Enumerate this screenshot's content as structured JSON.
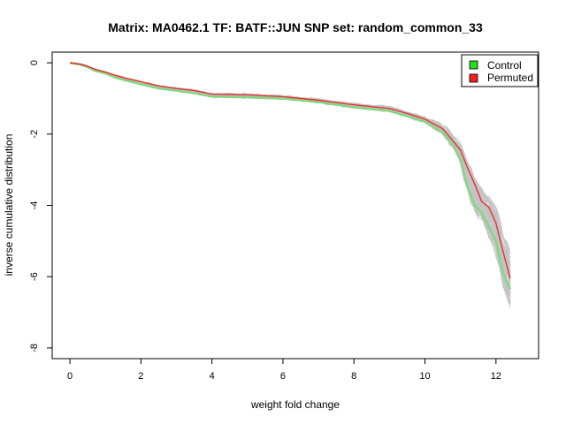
{
  "chart_data": {
    "type": "line",
    "title": "Matrix: MA0462.1 TF: BATF::JUN SNP set: random_common_33",
    "xlabel": "weight fold change",
    "ylabel": "inverse cumulative distribution",
    "xlim": [
      -0.5,
      13.2
    ],
    "ylim": [
      -8.3,
      0.3
    ],
    "x_ticks": [
      0,
      2,
      4,
      6,
      8,
      10,
      12
    ],
    "y_ticks": [
      0,
      -2,
      -4,
      -6,
      -8
    ],
    "legend": {
      "position": "top-right",
      "entries": [
        {
          "label": "Control",
          "color": "#22dd22"
        },
        {
          "label": "Permuted",
          "color": "#ee2222"
        }
      ]
    },
    "series": [
      {
        "name": "Control",
        "color": "#7fd97f",
        "x": [
          0.0,
          0.3,
          0.5,
          0.7,
          1.0,
          1.3,
          1.6,
          2.0,
          2.5,
          3.0,
          3.5,
          4.0,
          5.0,
          6.0,
          7.0,
          8.0,
          9.0,
          9.5,
          10.0,
          10.5,
          10.8,
          11.0,
          11.2,
          11.4,
          11.6,
          11.8,
          12.0,
          12.2,
          12.4
        ],
        "y": [
          0.0,
          -0.05,
          -0.12,
          -0.22,
          -0.3,
          -0.42,
          -0.5,
          -0.6,
          -0.72,
          -0.78,
          -0.85,
          -0.95,
          -0.97,
          -1.0,
          -1.1,
          -1.25,
          -1.35,
          -1.5,
          -1.65,
          -1.95,
          -2.3,
          -2.7,
          -3.5,
          -4.0,
          -4.2,
          -4.6,
          -5.0,
          -5.9,
          -6.35
        ]
      },
      {
        "name": "Permuted",
        "color": "#e83030",
        "x": [
          0.0,
          0.3,
          0.5,
          0.7,
          1.0,
          1.3,
          1.6,
          2.0,
          2.5,
          3.0,
          3.5,
          4.0,
          5.0,
          6.0,
          7.0,
          8.0,
          9.0,
          9.5,
          10.0,
          10.5,
          10.8,
          11.0,
          11.2,
          11.4,
          11.6,
          11.8,
          12.0,
          12.2,
          12.4
        ],
        "y": [
          0.0,
          -0.04,
          -0.1,
          -0.18,
          -0.26,
          -0.36,
          -0.44,
          -0.53,
          -0.65,
          -0.72,
          -0.78,
          -0.88,
          -0.9,
          -0.95,
          -1.05,
          -1.18,
          -1.28,
          -1.42,
          -1.58,
          -1.85,
          -2.2,
          -2.45,
          -2.95,
          -3.4,
          -3.9,
          -4.05,
          -4.5,
          -5.3,
          -6.05
        ]
      }
    ]
  }
}
